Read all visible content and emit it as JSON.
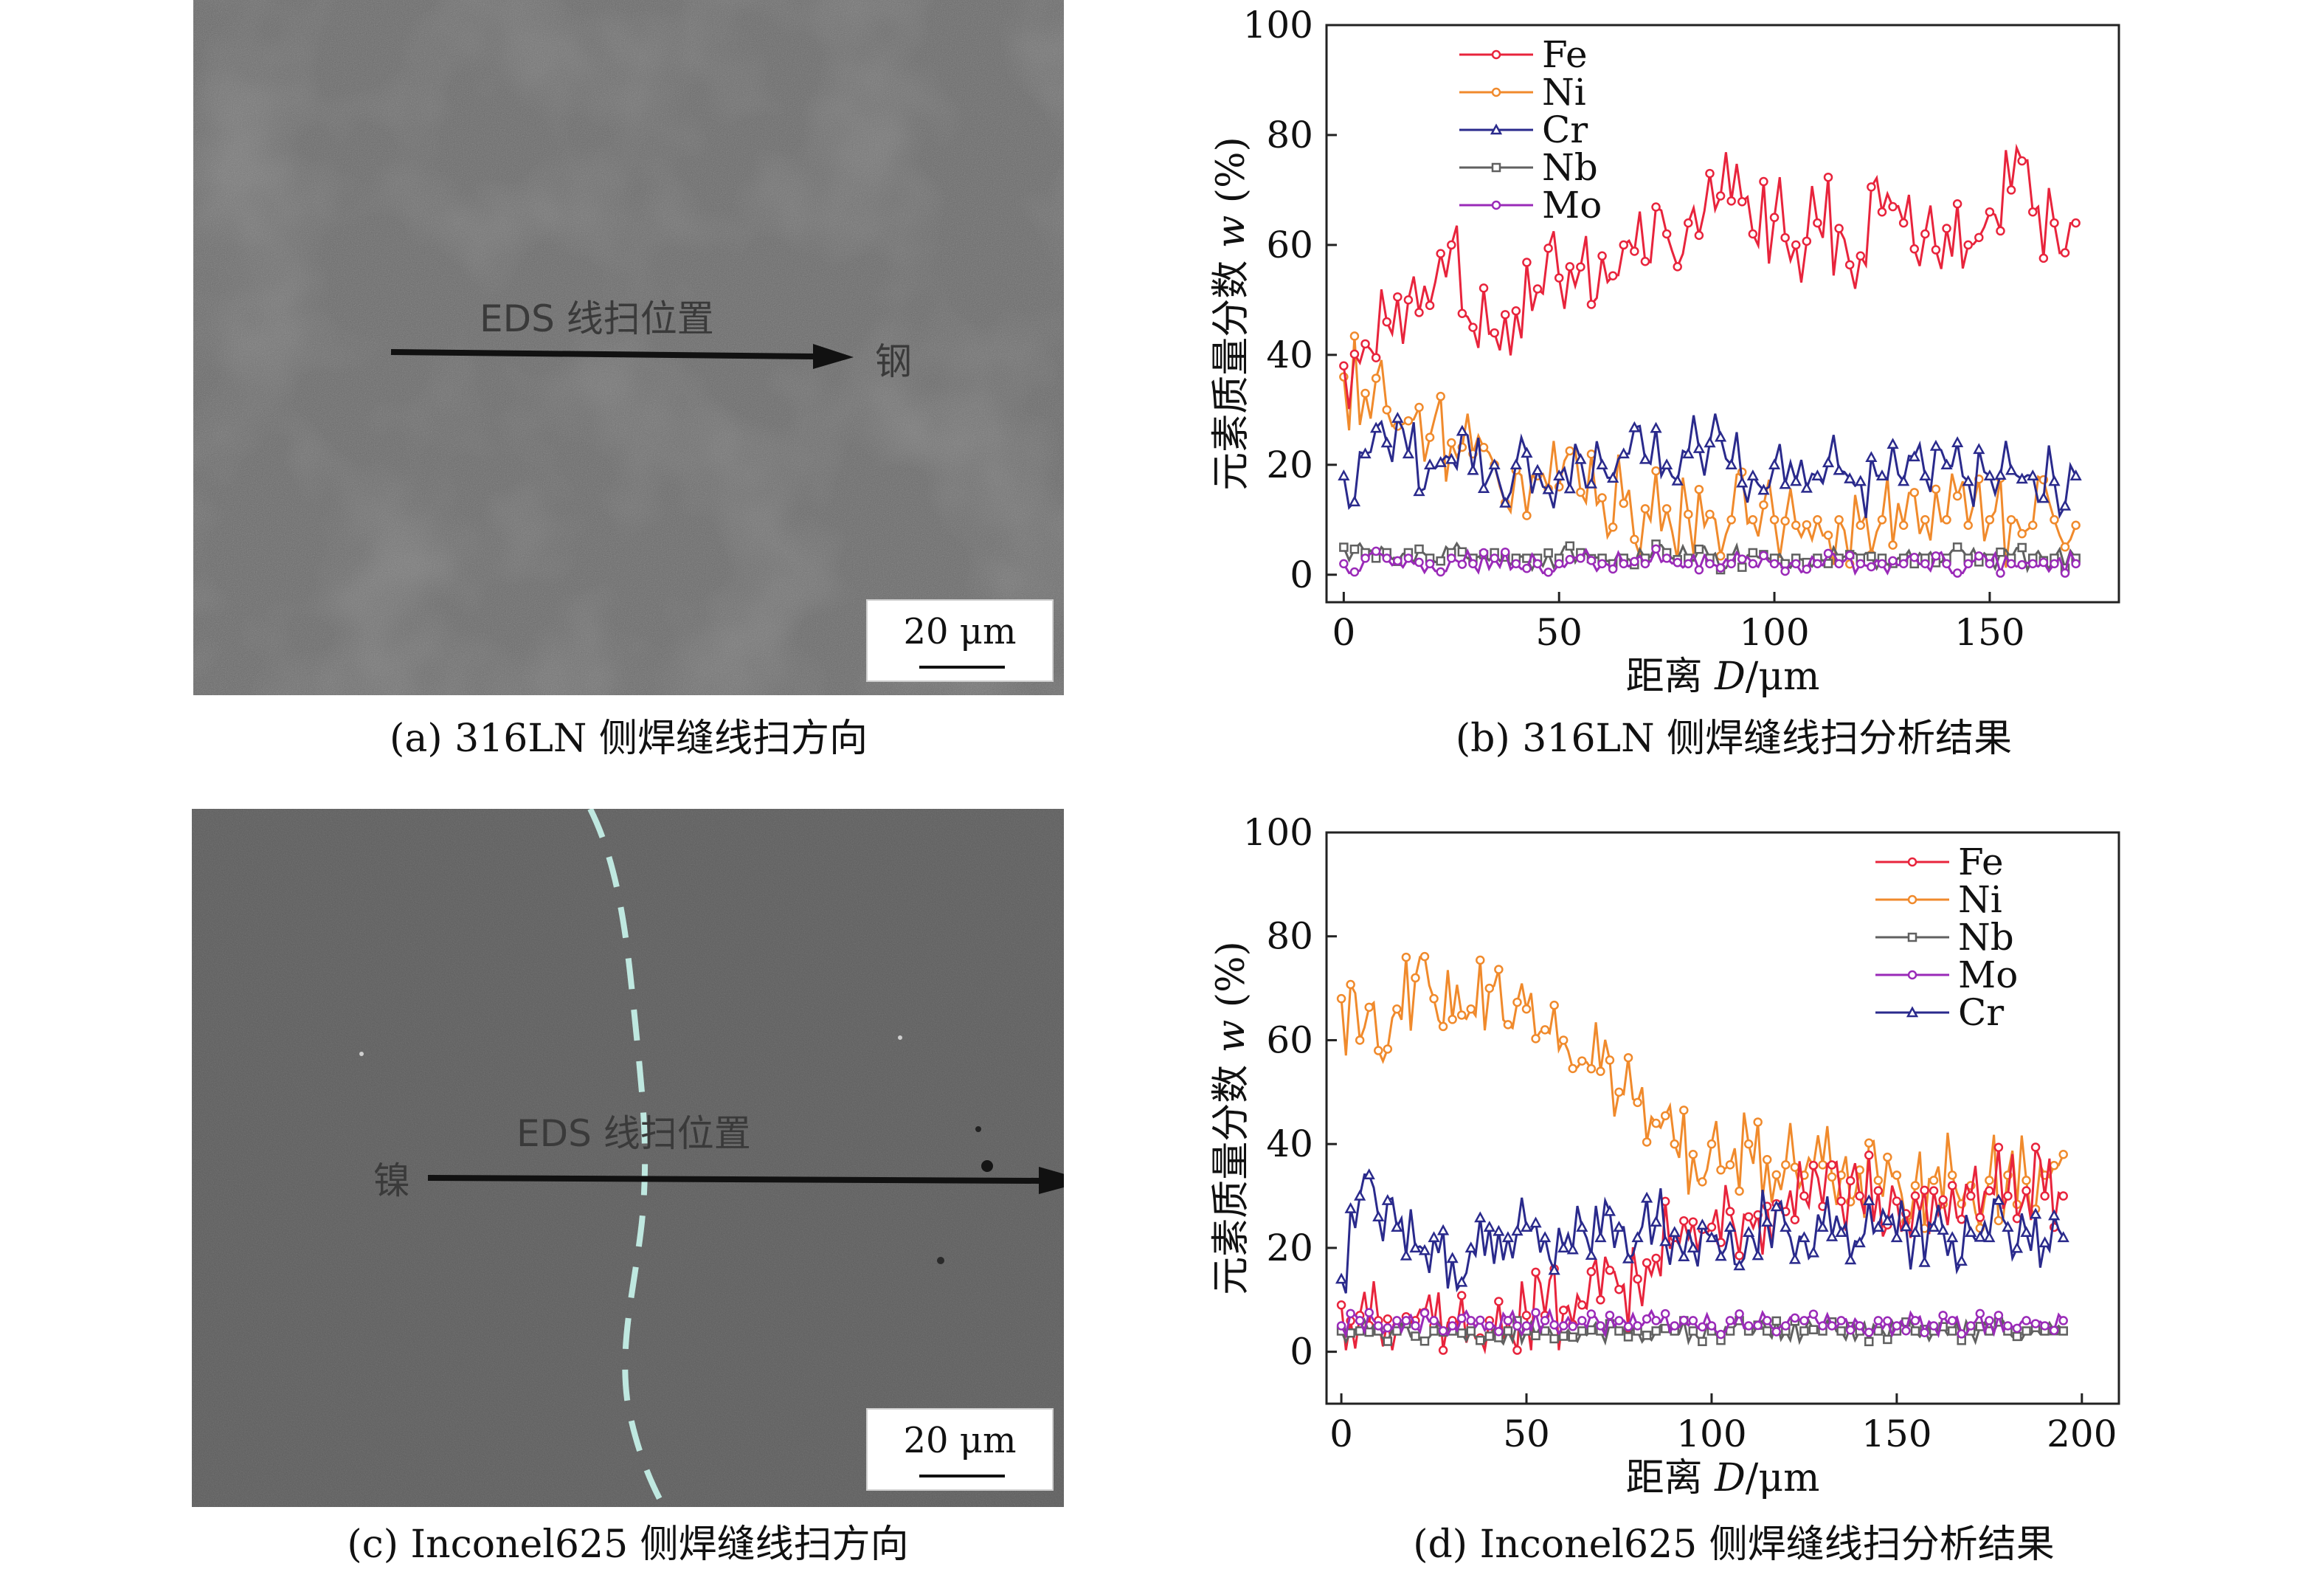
{
  "panel_a": {
    "caption": "(a) 316LN 侧焊缝线扫方向",
    "scale_bar": "20 μm",
    "scan_label": "EDS 线扫位置",
    "end_label": "钢"
  },
  "panel_c": {
    "caption": "(c) Inconel625 侧焊缝线扫方向",
    "scale_bar": "20 μm",
    "scan_label": "EDS 线扫位置",
    "start_label": "镍"
  },
  "colors": {
    "Fe": "#e8243c",
    "Ni": "#f08a2c",
    "Cr": "#2a2a8c",
    "Nb": "#606060",
    "Mo": "#9a2ab8"
  },
  "chart_data": [
    {
      "type": "line",
      "caption": "(b) 316LN 侧焊缝线扫分析结果",
      "xlabel_prefix": "距离 ",
      "xlabel_var": "D",
      "xlabel_unit": "/μm",
      "ylabel_prefix": "元素质量分数 ",
      "ylabel_var": "w",
      "ylabel_unit": " (%)",
      "xlim": [
        -4,
        180
      ],
      "ylim": [
        -5,
        100
      ],
      "xticks": [
        0,
        50,
        100,
        150
      ],
      "yticks": [
        0,
        20,
        40,
        60,
        80,
        100
      ],
      "legend_position": "top-left",
      "legend_order": [
        "Fe",
        "Ni",
        "Cr",
        "Nb",
        "Mo"
      ],
      "x": [
        0,
        5,
        10,
        15,
        20,
        25,
        30,
        35,
        40,
        45,
        50,
        55,
        60,
        65,
        70,
        75,
        80,
        85,
        90,
        95,
        100,
        105,
        110,
        115,
        120,
        125,
        130,
        135,
        140,
        145,
        150,
        155,
        160,
        165,
        170
      ],
      "series": [
        {
          "name": "Fe",
          "values": [
            38,
            42,
            46,
            50,
            49,
            60,
            45,
            44,
            48,
            52,
            54,
            56,
            58,
            60,
            57,
            62,
            64,
            73,
            68,
            62,
            65,
            60,
            64,
            63,
            58,
            66,
            64,
            62,
            63,
            60,
            66,
            70,
            66,
            64,
            64
          ]
        },
        {
          "name": "Ni",
          "values": [
            36,
            33,
            30,
            28,
            25,
            24,
            22,
            20,
            19,
            18,
            16,
            15,
            14,
            13,
            12,
            12,
            11,
            11,
            10,
            10,
            10,
            9,
            10,
            10,
            9,
            10,
            9,
            10,
            10,
            9,
            10,
            10,
            9,
            10,
            9
          ]
        },
        {
          "name": "Cr",
          "values": [
            18,
            22,
            24,
            22,
            20,
            21,
            19,
            20,
            20,
            19,
            18,
            21,
            20,
            22,
            21,
            20,
            22,
            24,
            20,
            18,
            20,
            17,
            18,
            19,
            17,
            18,
            17,
            18,
            20,
            17,
            18,
            19,
            18,
            17,
            18
          ]
        },
        {
          "name": "Nb",
          "values": [
            5,
            4,
            4,
            4,
            3,
            4,
            3,
            4,
            3,
            3,
            3,
            4,
            3,
            3,
            3,
            4,
            3,
            3,
            3,
            4,
            3,
            3,
            3,
            3,
            3,
            3,
            3,
            3,
            3,
            3,
            3,
            3,
            3,
            3,
            3
          ]
        },
        {
          "name": "Mo",
          "values": [
            2,
            3,
            3,
            3,
            2,
            3,
            2,
            3,
            2,
            2,
            2,
            3,
            2,
            2,
            2,
            3,
            2,
            2,
            2,
            2,
            2,
            2,
            2,
            2,
            2,
            2,
            2,
            2,
            2,
            2,
            2,
            2,
            2,
            2,
            2
          ]
        }
      ]
    },
    {
      "type": "line",
      "caption": "(d) Inconel625 侧焊缝线扫分析结果",
      "xlabel_prefix": "距离 ",
      "xlabel_var": "D",
      "xlabel_unit": "/μm",
      "ylabel_prefix": "元素质量分数 ",
      "ylabel_var": "w",
      "ylabel_unit": " (%)",
      "xlim": [
        -4,
        210
      ],
      "ylim": [
        -10,
        100
      ],
      "xticks": [
        0,
        50,
        100,
        150,
        200
      ],
      "yticks": [
        0,
        20,
        40,
        60,
        80,
        100
      ],
      "legend_position": "top-right",
      "legend_order": [
        "Fe",
        "Ni",
        "Nb",
        "Mo",
        "Cr"
      ],
      "x": [
        0,
        5,
        10,
        15,
        20,
        25,
        30,
        35,
        40,
        45,
        50,
        55,
        60,
        65,
        70,
        75,
        80,
        85,
        90,
        95,
        100,
        105,
        110,
        115,
        120,
        125,
        130,
        135,
        140,
        145,
        150,
        155,
        160,
        165,
        170,
        175,
        180,
        185,
        190,
        195
      ],
      "series": [
        {
          "name": "Fe",
          "values": [
            9,
            7,
            6,
            5,
            6,
            5,
            6,
            5,
            6,
            6,
            7,
            7,
            8,
            9,
            10,
            12,
            14,
            18,
            22,
            25,
            24,
            27,
            26,
            28,
            27,
            30,
            28,
            29,
            30,
            31,
            29,
            30,
            31,
            32,
            30,
            31,
            30,
            31,
            30,
            30
          ]
        },
        {
          "name": "Ni",
          "values": [
            68,
            60,
            58,
            66,
            72,
            68,
            64,
            66,
            70,
            63,
            66,
            62,
            60,
            56,
            54,
            50,
            48,
            44,
            40,
            38,
            40,
            36,
            40,
            37,
            36,
            34,
            36,
            34,
            35,
            33,
            34,
            32,
            33,
            34,
            32,
            33,
            34,
            33,
            34,
            38
          ]
        },
        {
          "name": "Nb",
          "values": [
            4,
            4,
            4,
            4,
            3,
            4,
            4,
            4,
            3,
            4,
            4,
            4,
            3,
            4,
            4,
            4,
            4,
            4,
            4,
            4,
            4,
            4,
            4,
            4,
            4,
            4,
            4,
            4,
            4,
            4,
            4,
            4,
            4,
            4,
            4,
            4,
            4,
            4,
            4,
            4
          ]
        },
        {
          "name": "Mo",
          "values": [
            5,
            6,
            5,
            6,
            5,
            6,
            5,
            6,
            5,
            6,
            5,
            6,
            5,
            6,
            5,
            6,
            5,
            6,
            5,
            6,
            5,
            6,
            5,
            6,
            5,
            6,
            5,
            6,
            5,
            6,
            5,
            6,
            5,
            6,
            5,
            6,
            5,
            6,
            5,
            6
          ]
        },
        {
          "name": "Cr",
          "values": [
            14,
            30,
            26,
            24,
            20,
            22,
            18,
            20,
            24,
            22,
            24,
            22,
            20,
            24,
            22,
            24,
            22,
            25,
            23,
            20,
            22,
            24,
            23,
            25,
            24,
            22,
            24,
            23,
            21,
            24,
            22,
            23,
            24,
            22,
            23,
            22,
            24,
            23,
            21,
            22
          ]
        }
      ]
    }
  ]
}
